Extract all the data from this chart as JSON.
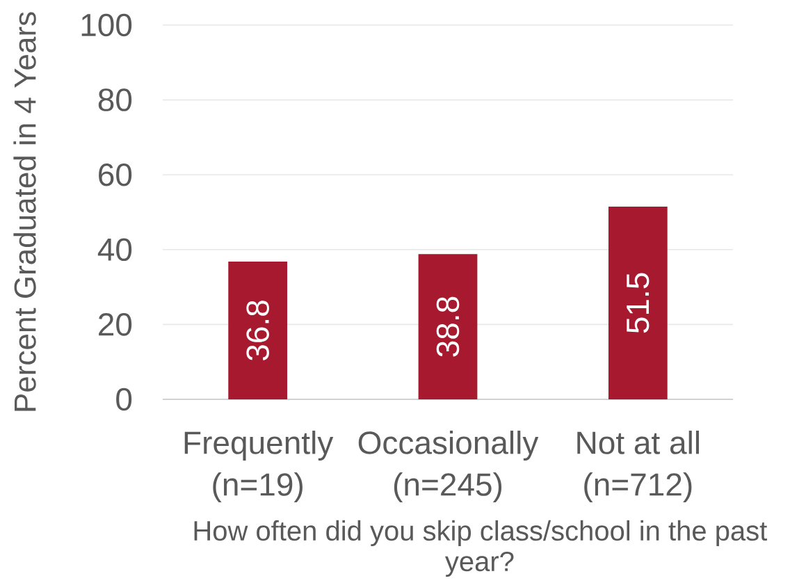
{
  "chart_data": {
    "type": "bar",
    "categories": [
      "Frequently (n=19)",
      "Occasionally (n=245)",
      "Not at all (n=712)"
    ],
    "values": [
      36.8,
      38.8,
      51.5
    ],
    "color": "#a6192e",
    "ylim": [
      0,
      100
    ],
    "yticks": [
      0,
      20,
      40,
      60,
      80,
      100
    ],
    "ylabel": "Percent Graduated in 4 Years",
    "xlabel": "How often did you skip class/school in the past year?",
    "grid": "y",
    "data_labels": true
  }
}
